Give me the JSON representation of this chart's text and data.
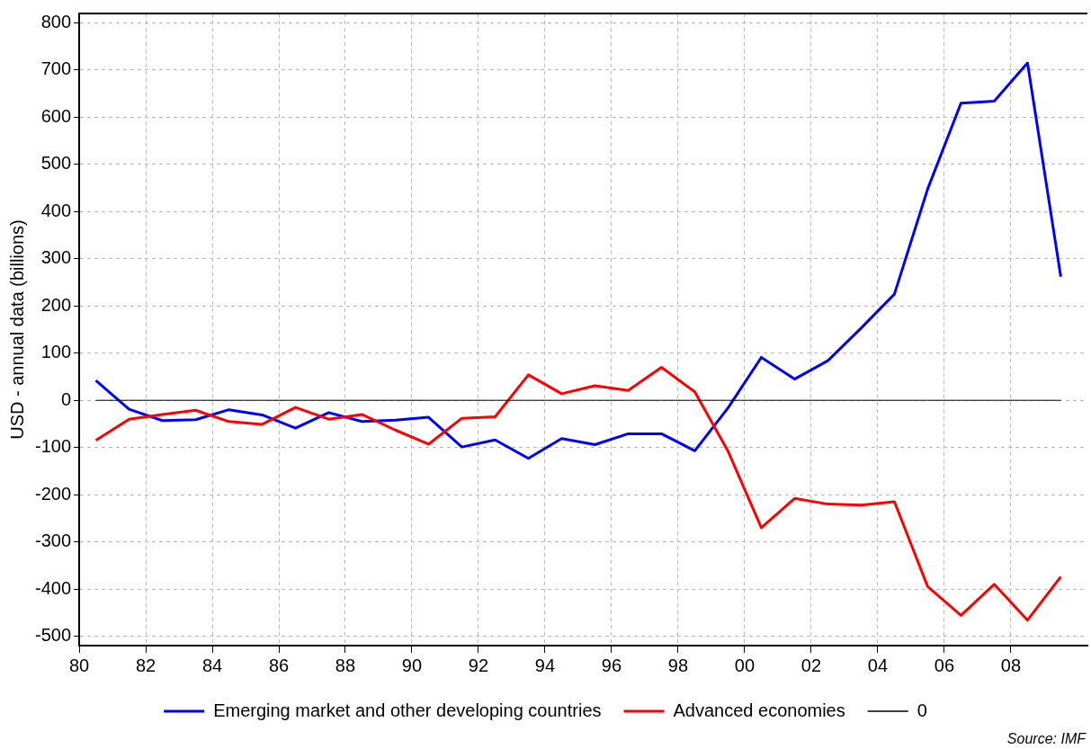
{
  "chart_data": {
    "type": "line",
    "ylabel": "USD - annual data (billions)",
    "x": [
      1980.5,
      1981.5,
      1982.5,
      1983.5,
      1984.5,
      1985.5,
      1986.5,
      1987.5,
      1988.5,
      1989.5,
      1990.5,
      1991.5,
      1992.5,
      1993.5,
      1994.5,
      1995.5,
      1996.5,
      1997.5,
      1998.5,
      1999.5,
      2000.5,
      2001.5,
      2002.5,
      2003.5,
      2004.5,
      2005.5,
      2006.5,
      2007.5,
      2008.5,
      2009.5
    ],
    "series": [
      {
        "name": "Emerging market and other developing countries",
        "color": "#0000ff",
        "values": [
          42,
          -19,
          -43,
          -41,
          -20,
          -31,
          -59,
          -26,
          -45,
          -42,
          -36,
          -99,
          -84,
          -123,
          -81,
          -94,
          -71,
          -71,
          -107,
          -16,
          91,
          45,
          84,
          153,
          225,
          448,
          630,
          634,
          715,
          262
        ]
      },
      {
        "name": "Advanced economies",
        "color": "#ff0000",
        "values": [
          -85,
          -40,
          -30,
          -21,
          -45,
          -51,
          -15,
          -40,
          -30,
          -63,
          -93,
          -38,
          -35,
          54,
          14,
          31,
          21,
          70,
          18,
          -108,
          -270,
          -208,
          -220,
          -222,
          -215,
          -395,
          -456,
          -390,
          -466,
          -374
        ]
      },
      {
        "name": "0",
        "color": "#000000",
        "values": [
          0,
          0,
          0,
          0,
          0,
          0,
          0,
          0,
          0,
          0,
          0,
          0,
          0,
          0,
          0,
          0,
          0,
          0,
          0,
          0,
          0,
          0,
          0,
          0,
          0,
          0,
          0,
          0,
          0,
          0
        ]
      }
    ],
    "xlim": [
      1980,
      2010.3
    ],
    "xticks": [
      {
        "value": 1980,
        "label": "80"
      },
      {
        "value": 1982,
        "label": "82"
      },
      {
        "value": 1984,
        "label": "84"
      },
      {
        "value": 1986,
        "label": "86"
      },
      {
        "value": 1988,
        "label": "88"
      },
      {
        "value": 1990,
        "label": "90"
      },
      {
        "value": 1992,
        "label": "92"
      },
      {
        "value": 1994,
        "label": "94"
      },
      {
        "value": 1996,
        "label": "96"
      },
      {
        "value": 1998,
        "label": "98"
      },
      {
        "value": 2000,
        "label": "00"
      },
      {
        "value": 2002,
        "label": "02"
      },
      {
        "value": 2004,
        "label": "04"
      },
      {
        "value": 2006,
        "label": "06"
      },
      {
        "value": 2008,
        "label": "08"
      }
    ],
    "ylim": [
      -520,
      820
    ],
    "yticks": [
      -500,
      -400,
      -300,
      -200,
      -100,
      0,
      100,
      200,
      300,
      400,
      500,
      600,
      700,
      800
    ],
    "grid": true,
    "legend": "bottom",
    "marker": "none",
    "line_style": "solid",
    "annotations": [
      "Source: IMF"
    ]
  }
}
